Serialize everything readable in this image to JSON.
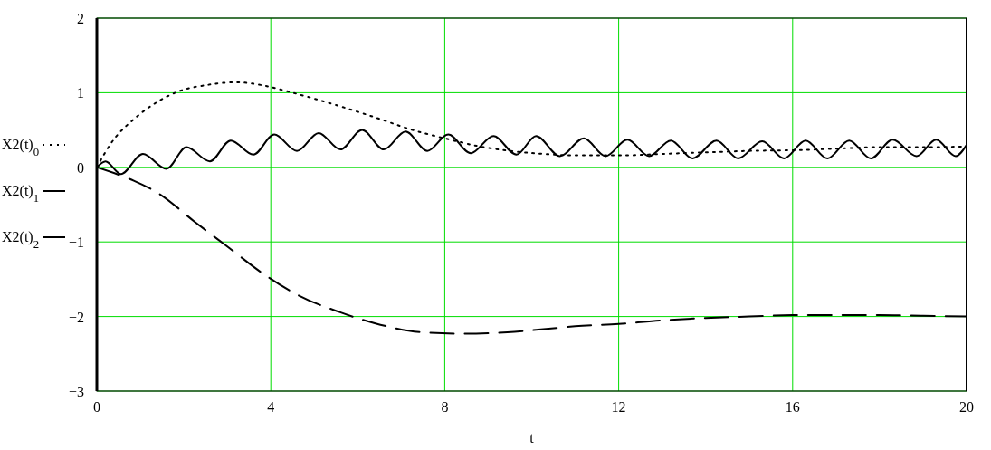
{
  "chart_data": {
    "type": "line",
    "xlabel": "t",
    "xlim": [
      0,
      20
    ],
    "xticks": [
      0,
      4,
      8,
      12,
      16,
      20
    ],
    "ylim": [
      -3,
      2
    ],
    "yticks": [
      -3,
      -2,
      -1,
      0,
      1,
      2
    ],
    "grid": true,
    "legend": "left",
    "series": [
      {
        "name": "X2(t)$_{0}$",
        "color": "#000000",
        "line_style": "dotted",
        "x": [
          0,
          0.3,
          0.9,
          1.4,
          1.94,
          2.5,
          3.19,
          3.8,
          4.37,
          5.0,
          5.75,
          6.5,
          7.15,
          8.2,
          8.8,
          9.5,
          10.27,
          11.0,
          12.1,
          13.0,
          14.0,
          15.0,
          16.1,
          17.0,
          18.0,
          19.0,
          20.0
        ],
        "values": [
          0,
          0.3,
          0.67,
          0.88,
          1.03,
          1.1,
          1.14,
          1.1,
          1.02,
          0.92,
          0.79,
          0.65,
          0.52,
          0.36,
          0.28,
          0.22,
          0.18,
          0.16,
          0.16,
          0.18,
          0.2,
          0.22,
          0.23,
          0.25,
          0.27,
          0.27,
          0.28
        ]
      },
      {
        "name": "X2(t)$_{1}$",
        "color": "#000000",
        "line_style": "solid",
        "x": [
          0,
          0.2,
          0.55,
          1.06,
          1.6,
          2.06,
          2.6,
          3.08,
          3.6,
          4.08,
          4.6,
          5.1,
          5.6,
          6.1,
          6.6,
          7.1,
          7.6,
          8.08,
          8.6,
          9.12,
          9.65,
          10.1,
          10.65,
          11.2,
          11.7,
          12.2,
          12.7,
          13.2,
          13.7,
          14.25,
          14.75,
          15.3,
          15.8,
          16.3,
          16.8,
          17.3,
          17.8,
          18.3,
          18.85,
          19.3,
          19.75,
          20
        ],
        "values": [
          0,
          0.08,
          -0.09,
          0.18,
          -0.02,
          0.27,
          0.08,
          0.36,
          0.17,
          0.44,
          0.22,
          0.46,
          0.24,
          0.5,
          0.24,
          0.48,
          0.22,
          0.44,
          0.19,
          0.42,
          0.17,
          0.42,
          0.15,
          0.39,
          0.15,
          0.37,
          0.15,
          0.36,
          0.12,
          0.36,
          0.12,
          0.35,
          0.12,
          0.36,
          0.12,
          0.36,
          0.12,
          0.37,
          0.15,
          0.37,
          0.15,
          0.3
        ]
      },
      {
        "name": "X2(t)$_{2}$",
        "color": "#000000",
        "line_style": "dashed",
        "x": [
          0,
          0.5,
          0.85,
          1.42,
          2.25,
          3.02,
          3.81,
          4.65,
          5.58,
          6.52,
          7.46,
          8.46,
          9.44,
          10.27,
          11.0,
          12.0,
          13.0,
          14.0,
          15.0,
          16.0,
          17.0,
          18.0,
          19.0,
          20.0
        ],
        "values": [
          0,
          -0.1,
          -0.18,
          -0.35,
          -0.73,
          -1.07,
          -1.42,
          -1.72,
          -1.94,
          -2.11,
          -2.21,
          -2.23,
          -2.21,
          -2.17,
          -2.13,
          -2.1,
          -2.05,
          -2.02,
          -2.0,
          -1.98,
          -1.98,
          -1.98,
          -1.99,
          -2.0
        ]
      }
    ]
  }
}
